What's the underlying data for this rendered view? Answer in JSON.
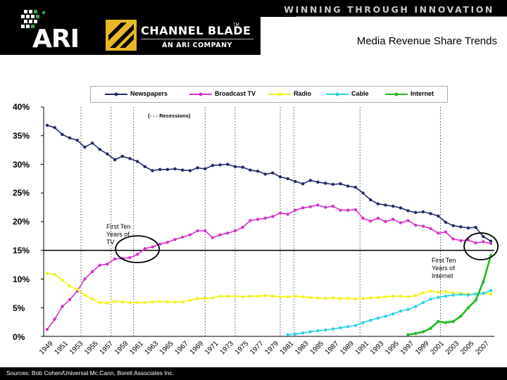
{
  "header": {
    "tagline": "WINNING THROUGH INNOVATION",
    "ari_logo_text": "ARI",
    "channel_blade_name": "CHANNEL BLADE",
    "channel_blade_tm": "TM",
    "channel_blade_subtitle": "AN ARI COMPANY",
    "slide_title": "Media Revenue Share Trends"
  },
  "colors": {
    "newspapers": "#1f2a6b",
    "broadcast_tv": "#d633c9",
    "radio": "#f2f21a",
    "cable": "#2ad4e6",
    "internet": "#22b822",
    "header_bg": "#000000",
    "brand_gold": "#e8b829"
  },
  "footer": {
    "sources": "Sources:  Bob Cohen/Universal Mc.Cann, Borell Associates Inc."
  },
  "chart_data": {
    "type": "line",
    "title": "",
    "xlabel": "",
    "ylabel": "",
    "ylim": [
      0,
      40
    ],
    "yticks": [
      "0%",
      "5%",
      "10%",
      "15%",
      "20%",
      "25%",
      "30%",
      "35%",
      "40%"
    ],
    "x_tick_labels": [
      "1949",
      "1951",
      "1953",
      "1955",
      "1957",
      "1959",
      "1961",
      "1963",
      "1965",
      "1967",
      "1969",
      "1971",
      "1973",
      "1975",
      "1977",
      "1979",
      "1981",
      "1983",
      "1985",
      "1987",
      "1989",
      "1991",
      "1993",
      "1995",
      "1997",
      "1999",
      "2001",
      "2003",
      "2005",
      "2007"
    ],
    "x": [
      1949,
      1950,
      1951,
      1952,
      1953,
      1954,
      1955,
      1956,
      1957,
      1958,
      1959,
      1960,
      1961,
      1962,
      1963,
      1964,
      1965,
      1966,
      1967,
      1968,
      1969,
      1970,
      1971,
      1972,
      1973,
      1974,
      1975,
      1976,
      1977,
      1978,
      1979,
      1980,
      1981,
      1982,
      1983,
      1984,
      1985,
      1986,
      1987,
      1988,
      1989,
      1990,
      1991,
      1992,
      1993,
      1994,
      1995,
      1996,
      1997,
      1998,
      1999,
      2000,
      2001,
      2002,
      2003,
      2004,
      2005,
      2006,
      2007,
      2008
    ],
    "series": [
      {
        "name": "Newspapers",
        "values": [
          36.8,
          36.4,
          35.2,
          34.6,
          34.2,
          33.0,
          33.7,
          32.6,
          31.8,
          30.8,
          31.4,
          31.0,
          30.5,
          29.6,
          28.9,
          29.1,
          29.1,
          29.2,
          29.0,
          28.9,
          29.4,
          29.2,
          29.8,
          29.9,
          30.0,
          29.6,
          29.5,
          29.0,
          28.8,
          28.3,
          28.5,
          27.8,
          27.5,
          27.0,
          26.6,
          27.2,
          26.9,
          26.7,
          26.5,
          26.6,
          26.2,
          26.0,
          25.0,
          23.8,
          23.1,
          22.9,
          22.7,
          22.4,
          21.9,
          21.6,
          21.7,
          21.4,
          21.0,
          19.9,
          19.3,
          19.1,
          18.9,
          19.0,
          17.4,
          16.6
        ]
      },
      {
        "name": "Broadcast TV",
        "values": [
          1.2,
          3.0,
          5.2,
          6.4,
          7.9,
          10.0,
          11.3,
          12.4,
          12.6,
          13.5,
          13.6,
          13.7,
          14.3,
          15.3,
          15.6,
          16.1,
          16.4,
          16.9,
          17.3,
          17.7,
          18.4,
          18.4,
          17.2,
          17.7,
          18.0,
          18.4,
          19.0,
          20.2,
          20.4,
          20.6,
          20.9,
          21.5,
          21.3,
          22.0,
          22.4,
          22.6,
          22.9,
          22.5,
          22.7,
          22.0,
          22.0,
          22.1,
          20.6,
          20.1,
          20.6,
          20.0,
          20.4,
          19.8,
          20.2,
          19.4,
          19.2,
          18.8,
          18.0,
          18.2,
          17.0,
          16.7,
          16.8,
          16.3,
          16.5,
          16.2
        ]
      },
      {
        "name": "Radio",
        "values": [
          11.0,
          10.8,
          9.8,
          8.8,
          8.2,
          7.2,
          6.5,
          5.9,
          5.8,
          6.1,
          6.0,
          5.9,
          5.9,
          5.9,
          6.0,
          6.1,
          6.0,
          6.0,
          6.0,
          6.3,
          6.6,
          6.6,
          6.7,
          7.0,
          7.0,
          7.0,
          6.9,
          7.0,
          7.0,
          7.1,
          7.0,
          6.9,
          6.9,
          7.0,
          6.9,
          6.8,
          6.7,
          6.6,
          6.7,
          6.6,
          6.6,
          6.5,
          6.6,
          6.7,
          6.8,
          6.9,
          7.0,
          7.0,
          6.9,
          7.1,
          7.6,
          7.9,
          7.7,
          7.8,
          7.6,
          7.5,
          7.4,
          7.4,
          7.5,
          7.4
        ]
      },
      {
        "name": "Cable",
        "values": [
          null,
          null,
          null,
          null,
          null,
          null,
          null,
          null,
          null,
          null,
          null,
          null,
          null,
          null,
          null,
          null,
          null,
          null,
          null,
          null,
          null,
          null,
          null,
          null,
          null,
          null,
          null,
          null,
          null,
          null,
          null,
          null,
          0.3,
          0.4,
          0.6,
          0.8,
          1.0,
          1.1,
          1.3,
          1.5,
          1.7,
          1.9,
          2.4,
          2.8,
          3.2,
          3.5,
          3.9,
          4.4,
          4.7,
          5.2,
          5.9,
          6.5,
          6.8,
          7.0,
          7.2,
          7.3,
          7.2,
          7.4,
          7.5,
          8.0
        ]
      },
      {
        "name": "Internet",
        "values": [
          null,
          null,
          null,
          null,
          null,
          null,
          null,
          null,
          null,
          null,
          null,
          null,
          null,
          null,
          null,
          null,
          null,
          null,
          null,
          null,
          null,
          null,
          null,
          null,
          null,
          null,
          null,
          null,
          null,
          null,
          null,
          null,
          null,
          null,
          null,
          null,
          null,
          null,
          null,
          null,
          null,
          null,
          null,
          null,
          null,
          null,
          null,
          null,
          0.3,
          0.5,
          0.8,
          1.4,
          2.6,
          2.4,
          2.6,
          3.5,
          5.0,
          6.3,
          9.5,
          14.1
        ]
      }
    ],
    "reference_line_y": 15,
    "grid": "dashed vertical lines at recession periods",
    "legend_position": "top",
    "recession_note": "(- - - Recessions)",
    "recession_years": [
      1953.5,
      1957.5,
      1960.5,
      1970,
      1974,
      1980,
      1981.8,
      1990.6,
      2001.3
    ],
    "annotations": [
      {
        "text": "First Ten\nYears of\nTV",
        "circled_year": 1960
      },
      {
        "text": "First Ten\nYears of\nInternet",
        "circled_year": 2007
      }
    ]
  }
}
